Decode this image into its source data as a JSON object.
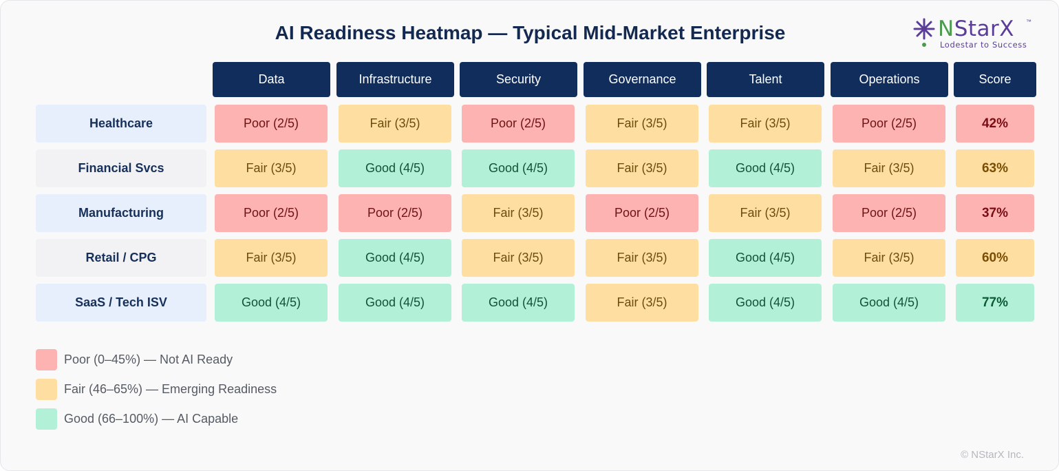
{
  "title": "AI Readiness Heatmap — Typical Mid-Market Enterprise",
  "logo": {
    "brand_prefix": "N",
    "brand_rest": "StarX",
    "trademark": "™",
    "tagline": "Lodestar to Success",
    "icon": "star-burst-icon"
  },
  "colors": {
    "header_bg": "#112d5c",
    "title": "#13294f",
    "poor": "#feb3b3",
    "fair": "#fedfa1",
    "good": "#b2f1d7",
    "row_label_alt_a": "#e7eefc",
    "row_label_alt_b": "#f2f2f4"
  },
  "chart_data": {
    "type": "heatmap",
    "title": "AI Readiness Heatmap — Typical Mid-Market Enterprise",
    "columns": [
      "Data",
      "Infrastructure",
      "Security",
      "Governance",
      "Talent",
      "Operations",
      "Score"
    ],
    "rows": [
      {
        "label": "Healthcare",
        "cells": [
          {
            "text": "Poor (2/5)",
            "level": "poor",
            "value": 2
          },
          {
            "text": "Fair (3/5)",
            "level": "fair",
            "value": 3
          },
          {
            "text": "Poor (2/5)",
            "level": "poor",
            "value": 2
          },
          {
            "text": "Fair (3/5)",
            "level": "fair",
            "value": 3
          },
          {
            "text": "Fair (3/5)",
            "level": "fair",
            "value": 3
          },
          {
            "text": "Poor (2/5)",
            "level": "poor",
            "value": 2
          }
        ],
        "score": "42%",
        "score_level": "poor"
      },
      {
        "label": "Financial Svcs",
        "cells": [
          {
            "text": "Fair (3/5)",
            "level": "fair",
            "value": 3
          },
          {
            "text": "Good (4/5)",
            "level": "good",
            "value": 4
          },
          {
            "text": "Good (4/5)",
            "level": "good",
            "value": 4
          },
          {
            "text": "Fair (3/5)",
            "level": "fair",
            "value": 3
          },
          {
            "text": "Good (4/5)",
            "level": "good",
            "value": 4
          },
          {
            "text": "Fair (3/5)",
            "level": "fair",
            "value": 3
          }
        ],
        "score": "63%",
        "score_level": "fair"
      },
      {
        "label": "Manufacturing",
        "cells": [
          {
            "text": "Poor (2/5)",
            "level": "poor",
            "value": 2
          },
          {
            "text": "Poor (2/5)",
            "level": "poor",
            "value": 2
          },
          {
            "text": "Fair (3/5)",
            "level": "fair",
            "value": 3
          },
          {
            "text": "Poor (2/5)",
            "level": "poor",
            "value": 2
          },
          {
            "text": "Fair (3/5)",
            "level": "fair",
            "value": 3
          },
          {
            "text": "Poor (2/5)",
            "level": "poor",
            "value": 2
          }
        ],
        "score": "37%",
        "score_level": "poor"
      },
      {
        "label": "Retail / CPG",
        "cells": [
          {
            "text": "Fair (3/5)",
            "level": "fair",
            "value": 3
          },
          {
            "text": "Good (4/5)",
            "level": "good",
            "value": 4
          },
          {
            "text": "Fair (3/5)",
            "level": "fair",
            "value": 3
          },
          {
            "text": "Fair (3/5)",
            "level": "fair",
            "value": 3
          },
          {
            "text": "Good (4/5)",
            "level": "good",
            "value": 4
          },
          {
            "text": "Fair (3/5)",
            "level": "fair",
            "value": 3
          }
        ],
        "score": "60%",
        "score_level": "fair"
      },
      {
        "label": "SaaS / Tech ISV",
        "cells": [
          {
            "text": "Good (4/5)",
            "level": "good",
            "value": 4
          },
          {
            "text": "Good (4/5)",
            "level": "good",
            "value": 4
          },
          {
            "text": "Good (4/5)",
            "level": "good",
            "value": 4
          },
          {
            "text": "Fair (3/5)",
            "level": "fair",
            "value": 3
          },
          {
            "text": "Good (4/5)",
            "level": "good",
            "value": 4
          },
          {
            "text": "Good (4/5)",
            "level": "good",
            "value": 4
          }
        ],
        "score": "77%",
        "score_level": "good"
      }
    ],
    "legend": [
      {
        "level": "poor",
        "label": "Poor (0–45%) — Not AI Ready"
      },
      {
        "level": "fair",
        "label": "Fair (46–65%) — Emerging Readiness"
      },
      {
        "level": "good",
        "label": "Good (66–100%) — AI Capable"
      }
    ]
  },
  "footer": {
    "copyright": "© NStarX Inc."
  }
}
